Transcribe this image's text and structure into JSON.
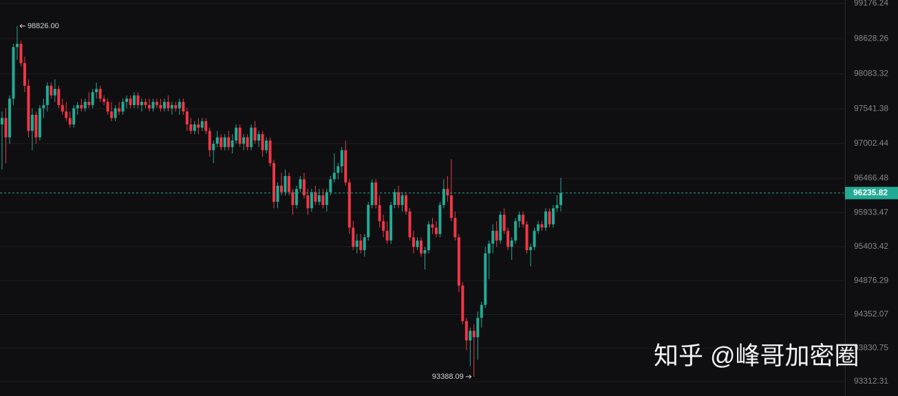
{
  "chart_data": {
    "type": "candlestick",
    "open": [
      97300,
      97400,
      97100,
      97700,
      98500,
      98550,
      98250,
      97900,
      97200,
      97450,
      97100,
      97550,
      97600,
      97900,
      97750,
      97850,
      97600,
      97500,
      97400,
      97300,
      97550,
      97600,
      97550,
      97650,
      97600,
      97800,
      97850,
      97700,
      97650,
      97500,
      97400,
      97550,
      97500,
      97650,
      97700,
      97600,
      97750,
      97600,
      97650,
      97600,
      97550,
      97650,
      97600,
      97550,
      97650,
      97550,
      97600,
      97550,
      97650,
      97500,
      97300,
      97200,
      97300,
      97250,
      97350,
      97200,
      96900,
      97000,
      97100,
      96950,
      97100,
      96950,
      97050,
      97250,
      97000,
      97100,
      96950,
      97250,
      97050,
      97150,
      96900,
      97050,
      96700,
      96100,
      96350,
      96250,
      96500,
      96250,
      96050,
      96300,
      96450,
      96200,
      96000,
      96250,
      96100,
      96200,
      96050,
      96250,
      96450,
      96550,
      96650,
      96900,
      96400,
      95700,
      95400,
      95500,
      95350,
      95550,
      96050,
      96400,
      96050,
      95800,
      95650,
      95500,
      96050,
      96250,
      96050,
      96200,
      95950,
      95550,
      95400,
      95500,
      95300,
      95350,
      95750,
      95700,
      95600,
      96050,
      96300,
      96200,
      95850,
      95550,
      94800,
      94250,
      93950,
      94100,
      94000,
      94300,
      94500,
      95300,
      95450,
      95650,
      95500,
      95900,
      95650,
      95400,
      95500,
      95800,
      95900,
      95750,
      95350,
      95400,
      95650,
      95750,
      95700,
      95950,
      95750,
      96000,
      96050
    ],
    "high": [
      97500,
      97550,
      97750,
      98550,
      98826,
      98600,
      98350,
      98000,
      97550,
      97500,
      97600,
      97700,
      97950,
      97950,
      98000,
      97900,
      97700,
      97650,
      97500,
      97600,
      97650,
      97700,
      97700,
      97800,
      97850,
      97950,
      97900,
      97750,
      97700,
      97650,
      97600,
      97650,
      97700,
      97750,
      97750,
      97800,
      97800,
      97700,
      97700,
      97700,
      97700,
      97700,
      97700,
      97700,
      97750,
      97650,
      97650,
      97700,
      97700,
      97550,
      97400,
      97350,
      97400,
      97400,
      97400,
      97250,
      97050,
      97200,
      97150,
      97150,
      97200,
      97150,
      97300,
      97300,
      97150,
      97150,
      97300,
      97350,
      97200,
      97200,
      97100,
      97100,
      96750,
      96400,
      96550,
      96600,
      96550,
      96300,
      96350,
      96500,
      96550,
      96300,
      96300,
      96350,
      96300,
      96300,
      96300,
      96500,
      96850,
      96700,
      96950,
      97050,
      96450,
      95800,
      95600,
      95600,
      95600,
      96100,
      96450,
      96450,
      96200,
      95900,
      95800,
      96100,
      96300,
      96350,
      96250,
      96250,
      96000,
      95650,
      95550,
      95550,
      95400,
      95800,
      95850,
      95800,
      96100,
      96450,
      96500,
      96760,
      95950,
      95600,
      94850,
      94300,
      94150,
      94200,
      94400,
      94550,
      95400,
      95500,
      95750,
      95800,
      95950,
      96000,
      95700,
      95550,
      95850,
      95950,
      95950,
      95800,
      95450,
      95700,
      95800,
      95800,
      96000,
      96000,
      96050,
      96200,
      96470
    ],
    "low": [
      96600,
      96700,
      97000,
      97600,
      98300,
      98200,
      97800,
      97100,
      96900,
      97000,
      97050,
      97400,
      97500,
      97700,
      97650,
      97550,
      97450,
      97350,
      97250,
      97250,
      97450,
      97500,
      97500,
      97550,
      97550,
      97700,
      97650,
      97600,
      97450,
      97350,
      97350,
      97450,
      97450,
      97550,
      97550,
      97550,
      97550,
      97500,
      97550,
      97500,
      97500,
      97550,
      97500,
      97500,
      97500,
      97450,
      97500,
      97450,
      97450,
      97200,
      97150,
      97150,
      97150,
      97200,
      97150,
      96800,
      96700,
      96950,
      96900,
      96900,
      96900,
      96850,
      97000,
      96950,
      96900,
      96900,
      96900,
      97000,
      96950,
      96800,
      96850,
      96650,
      96000,
      96000,
      96200,
      96200,
      96200,
      95900,
      96000,
      96250,
      96150,
      95900,
      95950,
      96050,
      96050,
      96000,
      95950,
      96200,
      96400,
      96450,
      96550,
      96350,
      95600,
      95350,
      95300,
      95300,
      95250,
      95500,
      96000,
      96000,
      95700,
      95550,
      95450,
      95450,
      96000,
      96000,
      95950,
      95900,
      95500,
      95300,
      95350,
      95250,
      95050,
      95300,
      95600,
      95550,
      95550,
      96000,
      96100,
      95800,
      95500,
      94700,
      94200,
      93800,
      93550,
      93388.09,
      93650,
      94150,
      94450,
      94900,
      95300,
      95400,
      95450,
      95600,
      95350,
      95200,
      95450,
      95700,
      95700,
      95300,
      95100,
      95350,
      95600,
      95650,
      95650,
      95700,
      95700,
      95950,
      95950
    ],
    "close": [
      97400,
      97100,
      97700,
      98500,
      98550,
      98250,
      97900,
      97200,
      97450,
      97100,
      97550,
      97600,
      97900,
      97750,
      97850,
      97600,
      97500,
      97400,
      97300,
      97550,
      97600,
      97550,
      97650,
      97600,
      97800,
      97850,
      97700,
      97650,
      97500,
      97400,
      97550,
      97500,
      97650,
      97700,
      97600,
      97750,
      97600,
      97650,
      97600,
      97550,
      97650,
      97600,
      97550,
      97650,
      97550,
      97600,
      97550,
      97650,
      97500,
      97300,
      97200,
      97300,
      97250,
      97350,
      97200,
      96900,
      97000,
      97100,
      96950,
      97100,
      96950,
      97050,
      97250,
      97000,
      97100,
      96950,
      97250,
      97050,
      97150,
      96900,
      97050,
      96700,
      96100,
      96350,
      96250,
      96500,
      96250,
      96050,
      96300,
      96450,
      96200,
      96000,
      96250,
      96100,
      96200,
      96050,
      96250,
      96450,
      96550,
      96650,
      96900,
      96400,
      95700,
      95400,
      95500,
      95350,
      95550,
      96050,
      96400,
      96050,
      95800,
      95650,
      95500,
      96050,
      96250,
      96050,
      96200,
      95950,
      95550,
      95400,
      95500,
      95300,
      95350,
      95750,
      95700,
      95600,
      96050,
      96300,
      96200,
      95850,
      95550,
      94800,
      94250,
      93950,
      94100,
      94000,
      94300,
      94500,
      95300,
      95450,
      95650,
      95500,
      95900,
      95650,
      95400,
      95500,
      95800,
      95900,
      95750,
      95350,
      95400,
      95650,
      95750,
      95700,
      95950,
      95750,
      96000,
      96050,
      96235.82
    ],
    "up_color": "#22ab94",
    "down_color": "#f23645",
    "ylim": [
      93088,
      99230
    ],
    "yticks": [
      99176.24,
      98628.26,
      98083.32,
      97541.38,
      97002.44,
      96466.48,
      95933.47,
      95403.42,
      94876.29,
      94352.07,
      93830.75,
      93312.31
    ],
    "grid": true,
    "high_label": {
      "value": 98826,
      "label": "98826.00"
    },
    "low_label": 93388.09,
    "last_price": 96235.82,
    "watermark": "知乎 @峰哥加密圈"
  }
}
